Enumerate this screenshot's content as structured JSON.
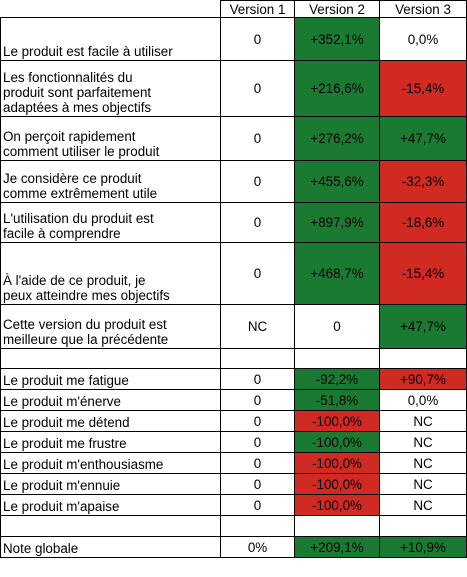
{
  "colors": {
    "green": "#1a7a32",
    "red": "#d12a22",
    "white": "#ffffff"
  },
  "header": [
    "",
    "Version 1",
    "Version 2",
    "Version 3"
  ],
  "rows": [
    {
      "label": [
        "Le produit est facile à utiliser"
      ],
      "v1": "0",
      "v2": "+352,1%",
      "v3": "0,0%",
      "c2": "g",
      "c3": "w"
    },
    {
      "label": [
        "Les fonctionnalités du",
        "produit sont parfaitement",
        "adaptées à mes objectifs"
      ],
      "v1": "0",
      "v2": "+216,6%",
      "v3": "-15,4%",
      "c2": "g",
      "c3": "r"
    },
    {
      "label": [
        "On perçoit rapidement",
        "comment utiliser le produit"
      ],
      "v1": "0",
      "v2": "+276,2%",
      "v3": "+47,7%",
      "c2": "g",
      "c3": "g"
    },
    {
      "label": [
        "Je considère ce produit",
        "comme extrêmement utile"
      ],
      "v1": "0",
      "v2": "+455,6%",
      "v3": "-32,3%",
      "c2": "g",
      "c3": "r"
    },
    {
      "label": [
        "L'utilisation du produit est",
        "facile à comprendre"
      ],
      "v1": "0",
      "v2": "+897,9%",
      "v3": "-18,6%",
      "c2": "g",
      "c3": "r"
    },
    {
      "label": [
        "À  l'aide de ce produit, je",
        "peux atteindre mes objectifs"
      ],
      "v1": "0",
      "v2": "+468,7%",
      "v3": "-15,4%",
      "c2": "g",
      "c3": "r"
    },
    {
      "label": [
        "Cette version du produit est",
        "meilleure que la précédente"
      ],
      "v1": "NC",
      "v2": "0",
      "v3": "+47,7%",
      "c2": "w",
      "c3": "g"
    },
    {
      "label": [
        ""
      ],
      "v1": "",
      "v2": "",
      "v3": "",
      "c2": "w",
      "c3": "w"
    },
    {
      "label": [
        "Le produit me fatigue"
      ],
      "v1": "0",
      "v2": "-92,2%",
      "v3": "+90,7%",
      "c2": "g",
      "c3": "r"
    },
    {
      "label": [
        "Le produit m'énerve"
      ],
      "v1": "0",
      "v2": "-51,8%",
      "v3": "0,0%",
      "c2": "g",
      "c3": "w"
    },
    {
      "label": [
        "Le produit me détend"
      ],
      "v1": "0",
      "v2": "-100,0%",
      "v3": "NC",
      "c2": "r",
      "c3": "w"
    },
    {
      "label": [
        "Le produit me frustre"
      ],
      "v1": "0",
      "v2": "-100,0%",
      "v3": "NC",
      "c2": "g",
      "c3": "w"
    },
    {
      "label": [
        "Le produit m'enthousiasme"
      ],
      "v1": "0",
      "v2": "-100,0%",
      "v3": "NC",
      "c2": "r",
      "c3": "w"
    },
    {
      "label": [
        "Le produit m'ennuie"
      ],
      "v1": "0",
      "v2": "-100,0%",
      "v3": "NC",
      "c2": "r",
      "c3": "w"
    },
    {
      "label": [
        "Le produit m'apaise"
      ],
      "v1": "0",
      "v2": "-100,0%",
      "v3": "NC",
      "c2": "r",
      "c3": "w"
    },
    {
      "label": [
        ""
      ],
      "v1": "",
      "v2": "",
      "v3": "",
      "c2": "w",
      "c3": "w"
    },
    {
      "label": [
        "Note globale"
      ],
      "v1": "0%",
      "v2": "+209,1%",
      "v3": "+10,9%",
      "c2": "g",
      "c3": "g"
    }
  ]
}
